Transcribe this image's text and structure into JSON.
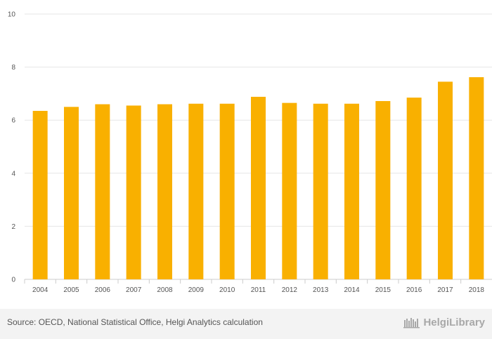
{
  "chart_data": {
    "type": "bar",
    "categories": [
      "2004",
      "2005",
      "2006",
      "2007",
      "2008",
      "2009",
      "2010",
      "2011",
      "2012",
      "2013",
      "2014",
      "2015",
      "2016",
      "2017",
      "2018"
    ],
    "values": [
      6.35,
      6.5,
      6.6,
      6.55,
      6.6,
      6.62,
      6.62,
      6.88,
      6.65,
      6.62,
      6.62,
      6.72,
      6.85,
      7.45,
      7.62
    ],
    "title": "",
    "xlabel": "",
    "ylabel": "",
    "ylim": [
      0,
      10
    ],
    "yticks": [
      0,
      2,
      4,
      6,
      8,
      10
    ],
    "grid": true,
    "bar_color": "#f9b000",
    "grid_color": "#e6e6e6"
  },
  "footer": {
    "source": "Source: OECD, National Statistical Office, Helgi Analytics calculation",
    "logo_text": "HelgiLibrary"
  }
}
